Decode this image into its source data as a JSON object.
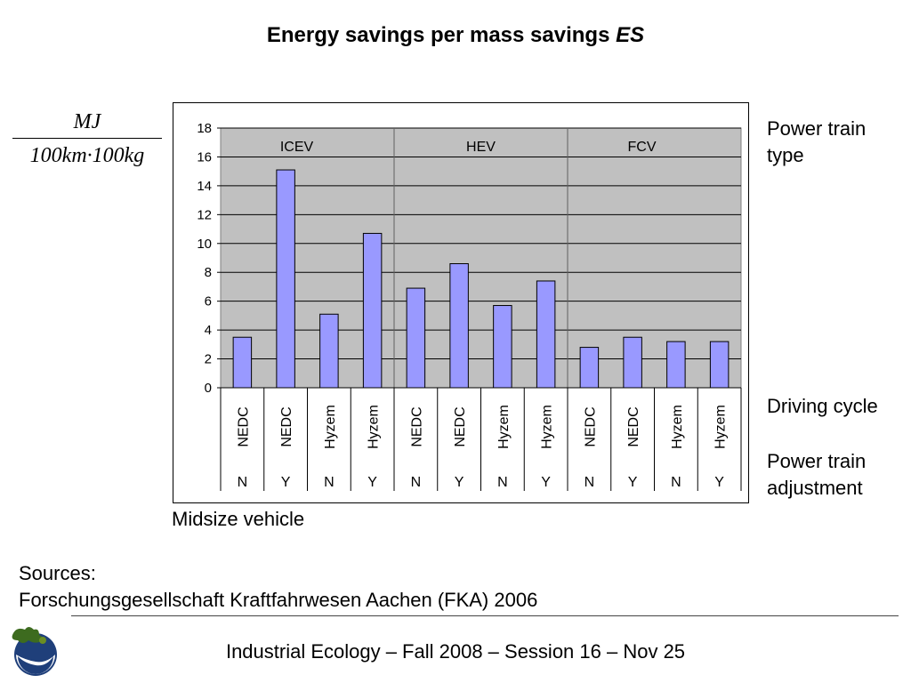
{
  "slide": {
    "title_main": "Energy savings per mass savings ",
    "title_italic": "ES",
    "unit_numerator": "MJ",
    "unit_denominator": "100km·100kg",
    "label_power_train_type": "Power train type",
    "label_driving_cycle": "Driving cycle",
    "label_power_train_adjustment": "Power train adjustment",
    "caption": "Midsize vehicle",
    "sources_heading": "Sources:",
    "sources_text": "Forschungsgesellschaft Kraftfahrwesen Aachen (FKA) 2006",
    "footer": "Industrial Ecology – Fall 2008 – Session 16 – Nov 25"
  },
  "colors": {
    "bar_fill": "#9999ff",
    "plot_bg": "#c0c0c0",
    "logo_blue": "#1f3f7a",
    "logo_green": "#3d6b1f"
  },
  "chart_data": {
    "type": "bar",
    "title": "",
    "xlabel": "",
    "ylabel": "",
    "ylim": [
      0,
      18
    ],
    "yticks": [
      0,
      2,
      4,
      6,
      8,
      10,
      12,
      14,
      16,
      18
    ],
    "grid": true,
    "groups": [
      "ICEV",
      "HEV",
      "FCV"
    ],
    "categories": [
      "NEDC",
      "NEDC",
      "Hyzem",
      "Hyzem",
      "NEDC",
      "NEDC",
      "Hyzem",
      "Hyzem",
      "NEDC",
      "NEDC",
      "Hyzem",
      "Hyzem"
    ],
    "adjustment": [
      "N",
      "Y",
      "N",
      "Y",
      "N",
      "Y",
      "N",
      "Y",
      "N",
      "Y",
      "N",
      "Y"
    ],
    "values": [
      3.5,
      15.1,
      5.1,
      10.7,
      6.9,
      8.6,
      5.7,
      7.4,
      2.8,
      3.5,
      3.2,
      3.2
    ]
  }
}
